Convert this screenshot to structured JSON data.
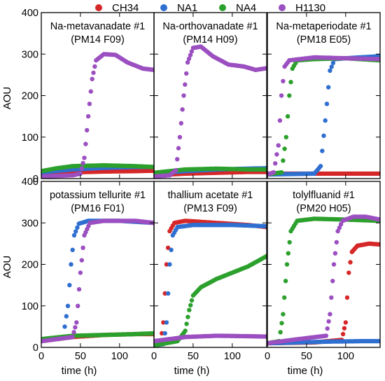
{
  "legend": [
    {
      "name": "CH34",
      "color": "#d62728"
    },
    {
      "name": "NA1",
      "color": "#2f6fd0"
    },
    {
      "name": "NA4",
      "color": "#2ca02c"
    },
    {
      "name": "H1130",
      "color": "#9b4fc0"
    }
  ],
  "ylabel": "AOU",
  "xlabel": "time (h)",
  "chart_data": [
    {
      "type": "scatter",
      "title_line1": "Na-metavanadate #1",
      "title_line2": "(PM14 F09)",
      "xlim": [
        0,
        144
      ],
      "ylim": [
        0,
        400
      ],
      "xticks": [
        0,
        50,
        100
      ],
      "yticks": [
        0,
        100,
        200,
        300,
        400
      ],
      "series": [
        {
          "name": "CH34",
          "points": [
            [
              0,
              12
            ],
            [
              40,
              15
            ],
            [
              80,
              17
            ],
            [
              120,
              18
            ],
            [
              144,
              19
            ]
          ]
        },
        {
          "name": "NA1",
          "points": [
            [
              0,
              15
            ],
            [
              40,
              22
            ],
            [
              80,
              26
            ],
            [
              120,
              28
            ],
            [
              144,
              28
            ]
          ]
        },
        {
          "name": "NA4",
          "points": [
            [
              0,
              18
            ],
            [
              20,
              25
            ],
            [
              40,
              30
            ],
            [
              80,
              32
            ],
            [
              120,
              30
            ],
            [
              144,
              28
            ]
          ]
        },
        {
          "name": "H1130",
          "points": [
            [
              0,
              5
            ],
            [
              40,
              8
            ],
            [
              50,
              12
            ],
            [
              55,
              50
            ],
            [
              60,
              150
            ],
            [
              65,
              240
            ],
            [
              70,
              285
            ],
            [
              80,
              300
            ],
            [
              95,
              298
            ],
            [
              110,
              280
            ],
            [
              130,
              265
            ],
            [
              144,
              262
            ]
          ]
        }
      ]
    },
    {
      "type": "scatter",
      "title_line1": "Na-orthovanadate #1",
      "title_line2": "(PM14 H09)",
      "xlim": [
        0,
        144
      ],
      "ylim": [
        0,
        400
      ],
      "xticks": [
        0,
        50,
        100
      ],
      "yticks": [
        0,
        100,
        200,
        300,
        400
      ],
      "series": [
        {
          "name": "CH34",
          "points": [
            [
              0,
              8
            ],
            [
              40,
              12
            ],
            [
              80,
              14
            ],
            [
              120,
              16
            ],
            [
              144,
              16
            ]
          ]
        },
        {
          "name": "NA1",
          "points": [
            [
              0,
              12
            ],
            [
              40,
              18
            ],
            [
              80,
              22
            ],
            [
              120,
              24
            ],
            [
              144,
              25
            ]
          ]
        },
        {
          "name": "NA4",
          "points": [
            [
              0,
              14
            ],
            [
              40,
              22
            ],
            [
              80,
              24
            ],
            [
              120,
              22
            ],
            [
              144,
              22
            ]
          ]
        },
        {
          "name": "H1130",
          "points": [
            [
              0,
              5
            ],
            [
              20,
              8
            ],
            [
              28,
              20
            ],
            [
              33,
              100
            ],
            [
              38,
              200
            ],
            [
              43,
              280
            ],
            [
              50,
              315
            ],
            [
              60,
              318
            ],
            [
              75,
              295
            ],
            [
              95,
              275
            ],
            [
              115,
              270
            ],
            [
              130,
              262
            ],
            [
              144,
              266
            ]
          ]
        }
      ]
    },
    {
      "type": "scatter",
      "title_line1": "Na-metaperiodate #1",
      "title_line2": "(PM18 E05)",
      "xlim": [
        0,
        144
      ],
      "ylim": [
        0,
        400
      ],
      "xticks": [
        0,
        50,
        100
      ],
      "yticks": [
        0,
        100,
        200,
        300,
        400
      ],
      "series": [
        {
          "name": "CH34",
          "points": [
            [
              0,
              12
            ],
            [
              40,
              12
            ],
            [
              80,
              12
            ],
            [
              120,
              12
            ],
            [
              144,
              12
            ]
          ]
        },
        {
          "name": "NA1",
          "points": [
            [
              0,
              10
            ],
            [
              60,
              12
            ],
            [
              68,
              30
            ],
            [
              74,
              140
            ],
            [
              80,
              260
            ],
            [
              86,
              288
            ],
            [
              100,
              290
            ],
            [
              144,
              295
            ]
          ]
        },
        {
          "name": "NA4",
          "points": [
            [
              0,
              10
            ],
            [
              18,
              15
            ],
            [
              24,
              100
            ],
            [
              28,
              200
            ],
            [
              32,
              265
            ],
            [
              38,
              285
            ],
            [
              60,
              288
            ],
            [
              100,
              290
            ],
            [
              144,
              285
            ]
          ]
        },
        {
          "name": "H1130",
          "points": [
            [
              0,
              10
            ],
            [
              8,
              15
            ],
            [
              14,
              80
            ],
            [
              18,
              200
            ],
            [
              22,
              270
            ],
            [
              28,
              285
            ],
            [
              60,
              292
            ],
            [
              100,
              290
            ],
            [
              144,
              288
            ]
          ]
        }
      ]
    },
    {
      "type": "scatter",
      "title_line1": "potassium tellurite #1",
      "title_line2": "(PM16 F01)",
      "xlim": [
        0,
        144
      ],
      "ylim": [
        0,
        400
      ],
      "xticks": [
        0,
        50,
        100
      ],
      "yticks": [
        0,
        100,
        200,
        300,
        400
      ],
      "series": [
        {
          "name": "CH34",
          "points": [
            [
              0,
              15
            ],
            [
              40,
              25
            ],
            [
              80,
              30
            ],
            [
              120,
              32
            ],
            [
              144,
              32
            ]
          ]
        },
        {
          "name": "NA1",
          "points": [
            [
              0,
              15
            ],
            [
              28,
              25
            ],
            [
              34,
              100
            ],
            [
              38,
              200
            ],
            [
              42,
              270
            ],
            [
              48,
              298
            ],
            [
              60,
              305
            ],
            [
              100,
              305
            ],
            [
              144,
              300
            ]
          ]
        },
        {
          "name": "NA4",
          "points": [
            [
              0,
              20
            ],
            [
              40,
              28
            ],
            [
              80,
              30
            ],
            [
              120,
              32
            ],
            [
              144,
              34
            ]
          ]
        },
        {
          "name": "H1130",
          "points": [
            [
              0,
              15
            ],
            [
              40,
              25
            ],
            [
              45,
              60
            ],
            [
              50,
              180
            ],
            [
              55,
              270
            ],
            [
              62,
              300
            ],
            [
              80,
              305
            ],
            [
              120,
              305
            ],
            [
              144,
              300
            ]
          ]
        }
      ]
    },
    {
      "type": "scatter",
      "title_line1": "thallium acetate #1",
      "title_line2": "(PM13 F09)",
      "xlim": [
        0,
        144
      ],
      "ylim": [
        0,
        400
      ],
      "xticks": [
        0,
        50,
        100
      ],
      "yticks": [
        0,
        100,
        200,
        300,
        400
      ],
      "series": [
        {
          "name": "CH34",
          "points": [
            [
              0,
              5
            ],
            [
              8,
              8
            ],
            [
              12,
              60
            ],
            [
              16,
              200
            ],
            [
              20,
              280
            ],
            [
              26,
              300
            ],
            [
              40,
              305
            ],
            [
              80,
              300
            ],
            [
              120,
              295
            ],
            [
              144,
              290
            ]
          ]
        },
        {
          "name": "NA1",
          "points": [
            [
              0,
              5
            ],
            [
              12,
              8
            ],
            [
              16,
              60
            ],
            [
              20,
              200
            ],
            [
              24,
              270
            ],
            [
              30,
              290
            ],
            [
              50,
              295
            ],
            [
              100,
              295
            ],
            [
              144,
              292
            ]
          ]
        },
        {
          "name": "NA4",
          "points": [
            [
              0,
              5
            ],
            [
              30,
              15
            ],
            [
              40,
              40
            ],
            [
              45,
              90
            ],
            [
              50,
              125
            ],
            [
              60,
              145
            ],
            [
              80,
              165
            ],
            [
              100,
              180
            ],
            [
              120,
              195
            ],
            [
              144,
              220
            ]
          ]
        },
        {
          "name": "H1130",
          "points": [
            [
              0,
              15
            ],
            [
              40,
              25
            ],
            [
              80,
              28
            ],
            [
              120,
              27
            ],
            [
              144,
              26
            ]
          ]
        }
      ]
    },
    {
      "type": "scatter",
      "title_line1": "tolylfluanid #1",
      "title_line2": "(PM20 H05)",
      "xlim": [
        0,
        144
      ],
      "ylim": [
        0,
        400
      ],
      "xticks": [
        0,
        50,
        100
      ],
      "yticks": [
        0,
        100,
        200,
        300,
        400
      ],
      "series": [
        {
          "name": "CH34",
          "points": [
            [
              0,
              10
            ],
            [
              60,
              12
            ],
            [
              95,
              18
            ],
            [
              100,
              60
            ],
            [
              104,
              180
            ],
            [
              108,
              230
            ],
            [
              115,
              245
            ],
            [
              130,
              250
            ],
            [
              144,
              248
            ]
          ]
        },
        {
          "name": "NA1",
          "points": [
            [
              0,
              10
            ],
            [
              40,
              12
            ],
            [
              80,
              14
            ],
            [
              120,
              15
            ],
            [
              144,
              15
            ]
          ]
        },
        {
          "name": "NA4",
          "points": [
            [
              0,
              10
            ],
            [
              15,
              15
            ],
            [
              20,
              80
            ],
            [
              25,
              200
            ],
            [
              30,
              280
            ],
            [
              38,
              305
            ],
            [
              60,
              310
            ],
            [
              100,
              308
            ],
            [
              144,
              305
            ]
          ]
        },
        {
          "name": "H1130",
          "points": [
            [
              0,
              10
            ],
            [
              40,
              20
            ],
            [
              75,
              28
            ],
            [
              80,
              80
            ],
            [
              85,
              200
            ],
            [
              90,
              280
            ],
            [
              96,
              305
            ],
            [
              110,
              315
            ],
            [
              125,
              315
            ],
            [
              144,
              308
            ]
          ]
        }
      ]
    }
  ]
}
